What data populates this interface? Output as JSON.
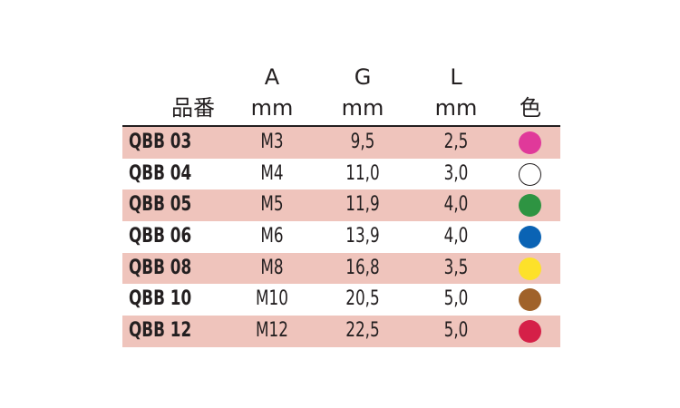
{
  "header": {
    "a": "A",
    "g": "G",
    "l": "L",
    "name": "品番",
    "a_unit": "mm",
    "g_unit": "mm",
    "l_unit": "mm",
    "color": "色"
  },
  "shade_color": "#efc4bc",
  "rows": [
    {
      "name": "QBB 03",
      "a": "M3",
      "g": "9,5",
      "l": "2,5",
      "color": "#e0399a",
      "shaded": true
    },
    {
      "name": "QBB 04",
      "a": "M4",
      "g": "11,0",
      "l": "3,0",
      "color": "#ffffff",
      "shaded": false
    },
    {
      "name": "QBB 05",
      "a": "M5",
      "g": "11,9",
      "l": "4,0",
      "color": "#2e9442",
      "shaded": true
    },
    {
      "name": "QBB 06",
      "a": "M6",
      "g": "13,9",
      "l": "4,0",
      "color": "#0a63b4",
      "shaded": false
    },
    {
      "name": "QBB 08",
      "a": "M8",
      "g": "16,8",
      "l": "3,5",
      "color": "#fde12a",
      "shaded": true
    },
    {
      "name": "QBB 10",
      "a": "M10",
      "g": "20,5",
      "l": "5,0",
      "color": "#a0622a",
      "shaded": false
    },
    {
      "name": "QBB 12",
      "a": "M12",
      "g": "22,5",
      "l": "5,0",
      "color": "#d52048",
      "shaded": true
    }
  ]
}
